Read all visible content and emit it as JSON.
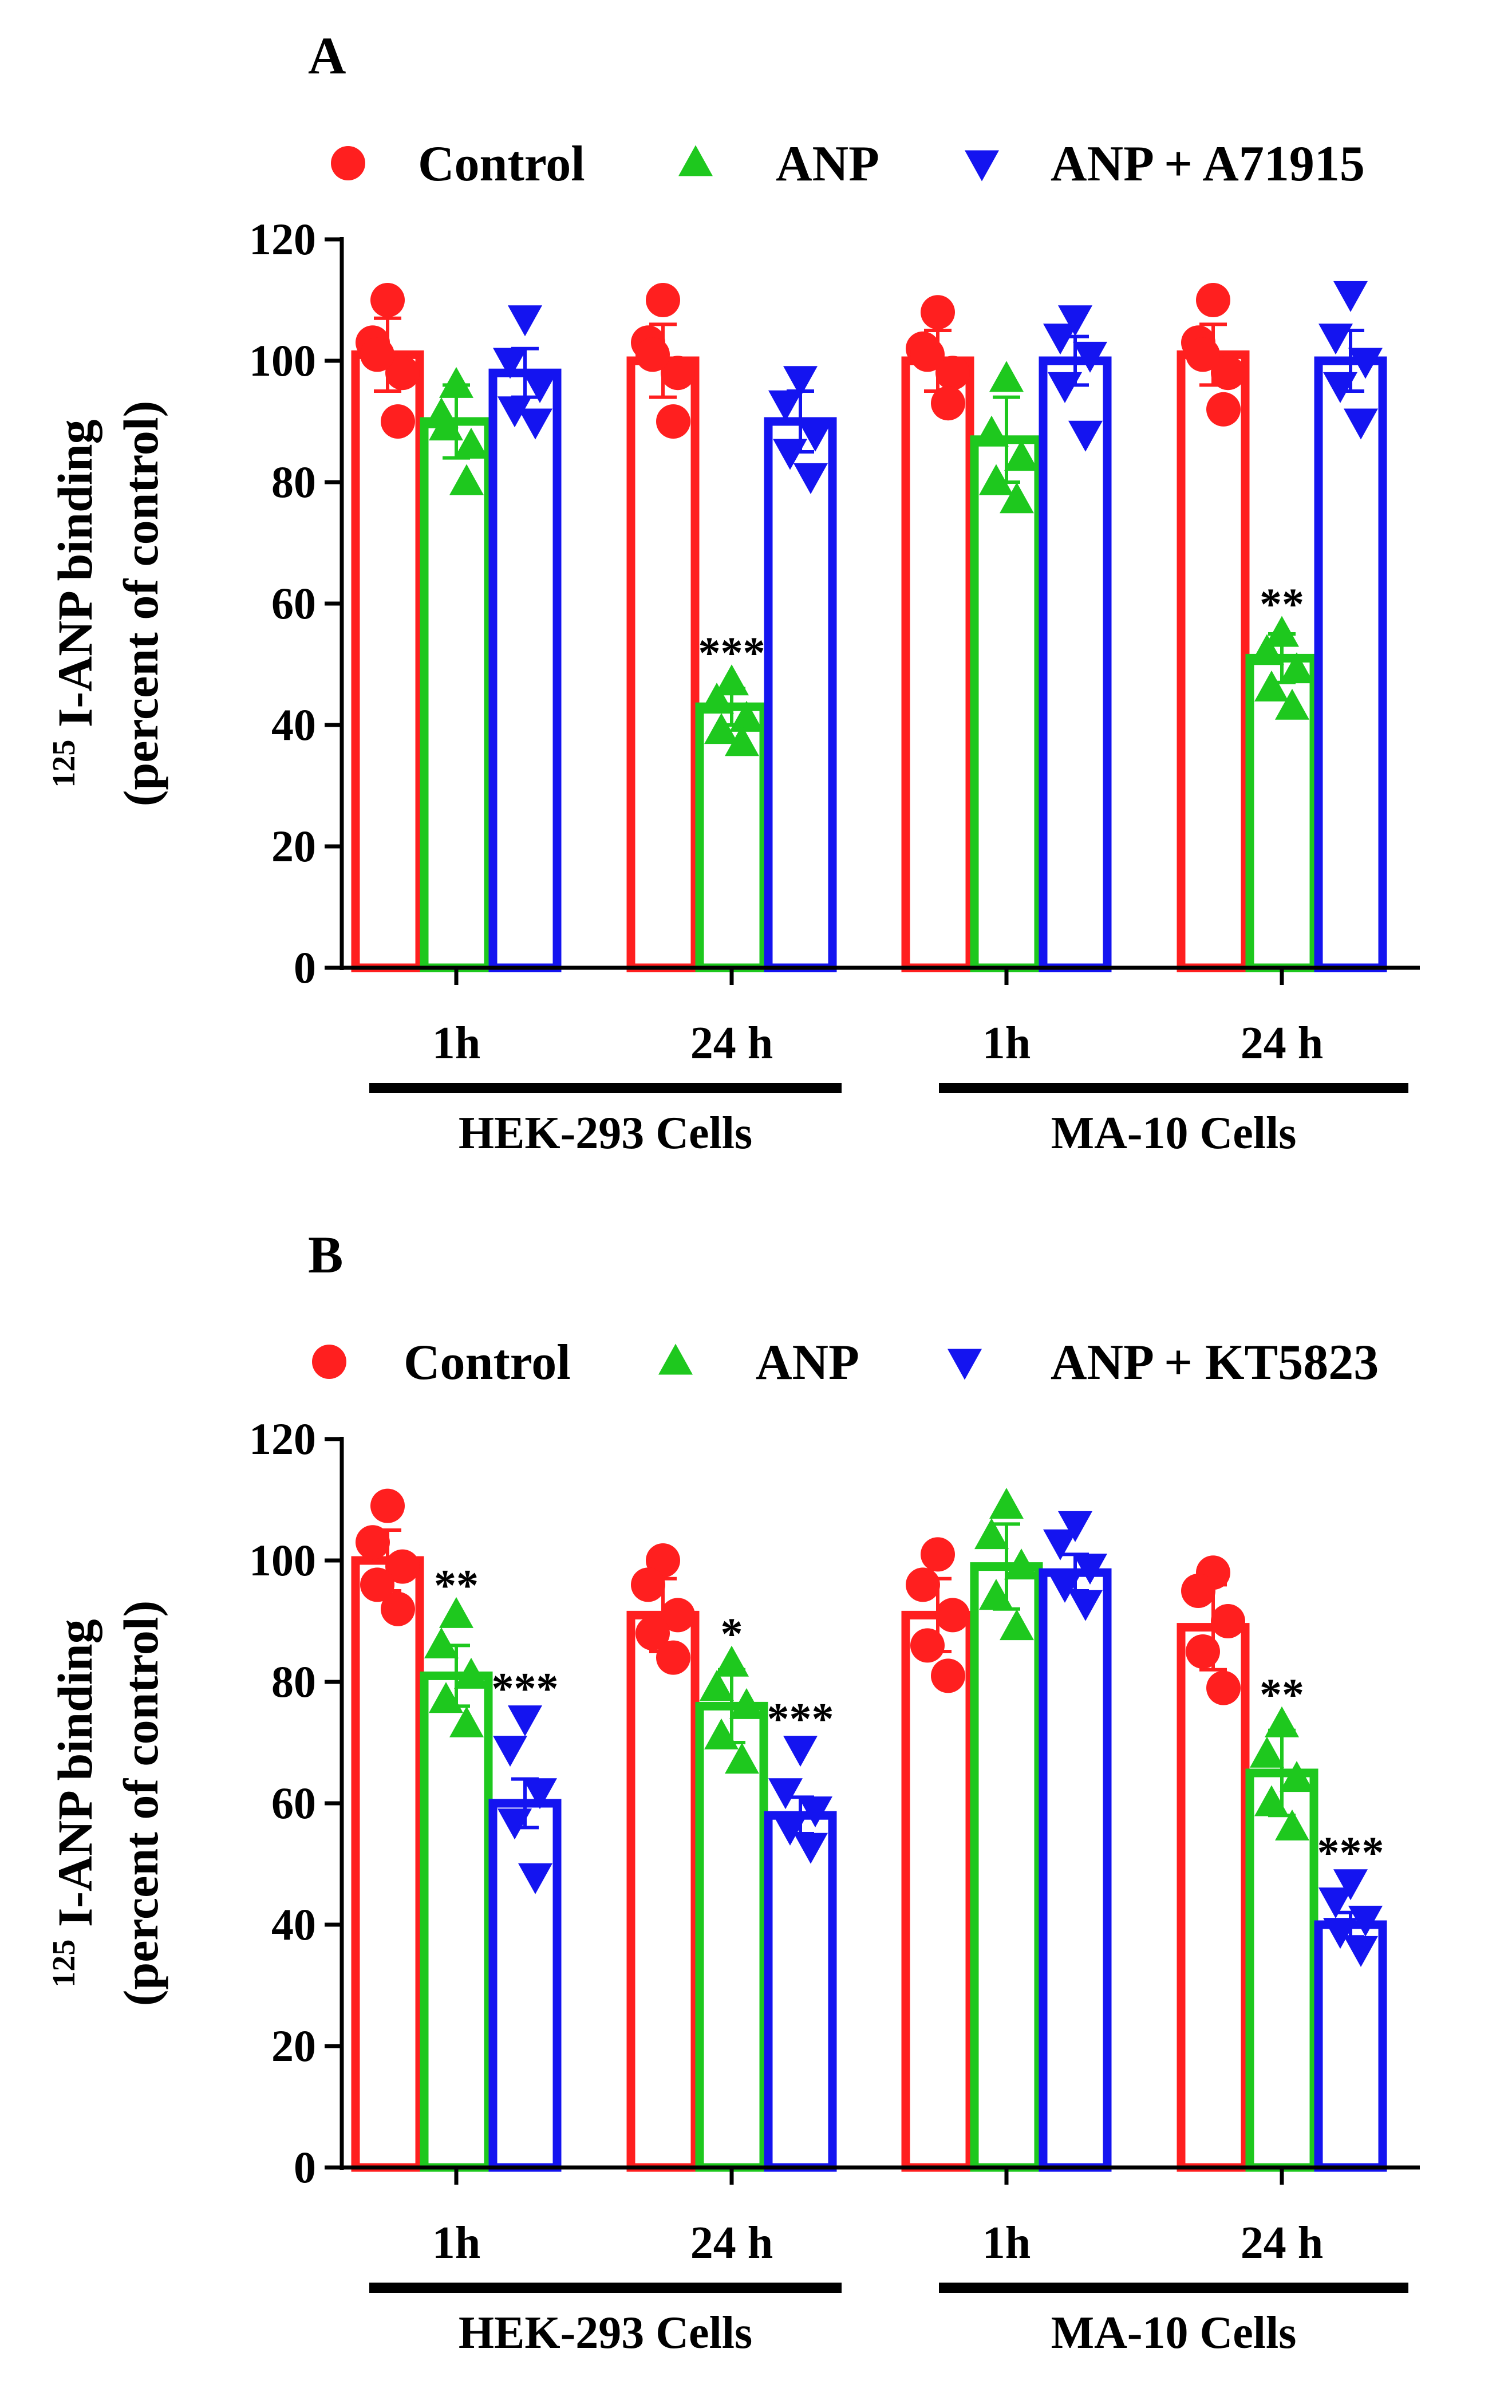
{
  "colors": {
    "control": "#ff1f1f",
    "anp": "#1ec81e",
    "inhibitor": "#1414f0",
    "axis": "#000000"
  },
  "chart_data": [
    {
      "panel": "A",
      "type": "bar",
      "ylabel_sup": "125",
      "ylabel_line1": " I-ANP binding",
      "ylabel_line2": "(percent of control)",
      "ylim": [
        0,
        120
      ],
      "yticks": [
        "0",
        "20",
        "40",
        "60",
        "80",
        "100",
        "120"
      ],
      "categories": [
        "1h",
        "24 h",
        "1h",
        "24 h"
      ],
      "groups": [
        "HEK-293 Cells",
        "MA-10 Cells"
      ],
      "legend": [
        "Control",
        "ANP",
        "ANP + A71915"
      ],
      "series": [
        {
          "name": "Control",
          "marker": "circle",
          "values": [
            101,
            100,
            100,
            101
          ],
          "err": [
            6,
            6,
            5,
            5
          ],
          "points": [
            [
              110,
              103,
              98,
              101,
              90
            ],
            [
              110,
              103,
              98,
              101,
              90
            ],
            [
              108,
              102,
              98,
              101,
              93
            ],
            [
              110,
              103,
              98,
              101,
              92
            ]
          ]
        },
        {
          "name": "ANP",
          "marker": "triangle-up",
          "values": [
            90,
            43,
            87,
            51
          ],
          "err": [
            6,
            3,
            7,
            4
          ],
          "points": [
            [
              96,
              91,
              86,
              89,
              80
            ],
            [
              47,
              44,
              41,
              39,
              37
            ],
            [
              97,
              88,
              84,
              80,
              77
            ],
            [
              55,
              52,
              49,
              46,
              43
            ]
          ]
        },
        {
          "name": "ANP + A71915",
          "marker": "triangle-down",
          "values": [
            98,
            90,
            100,
            100
          ],
          "err": [
            4,
            5,
            4,
            5
          ],
          "points": [
            [
              107,
              100,
              96,
              92,
              90
            ],
            [
              97,
              93,
              88,
              85,
              81
            ],
            [
              107,
              104,
              101,
              96,
              88
            ],
            [
              111,
              104,
              100,
              96,
              90
            ]
          ]
        }
      ],
      "annotations": [
        {
          "category": 1,
          "series": 1,
          "text": "***"
        },
        {
          "category": 3,
          "series": 1,
          "text": "**"
        }
      ]
    },
    {
      "panel": "B",
      "type": "bar",
      "ylabel_sup": "125",
      "ylabel_line1": " I-ANP binding",
      "ylabel_line2": "(percent of control)",
      "ylim": [
        0,
        120
      ],
      "yticks": [
        "0",
        "20",
        "40",
        "60",
        "80",
        "100",
        "120"
      ],
      "categories": [
        "1h",
        "24 h",
        "1h",
        "24 h"
      ],
      "groups": [
        "HEK-293 Cells",
        "MA-10 Cells"
      ],
      "legend": [
        "Control",
        "ANP",
        "ANP + KT5823"
      ],
      "series": [
        {
          "name": "Control",
          "marker": "circle",
          "values": [
            100,
            91,
            91,
            89
          ],
          "err": [
            5,
            6,
            6,
            7
          ],
          "points": [
            [
              109,
              103,
              99,
              96,
              92
            ],
            [
              100,
              96,
              91,
              88,
              84
            ],
            [
              101,
              96,
              91,
              86,
              81
            ],
            [
              98,
              95,
              90,
              85,
              79
            ]
          ]
        },
        {
          "name": "ANP",
          "marker": "triangle-up",
          "values": [
            81,
            76,
            99,
            65
          ],
          "err": [
            5,
            6,
            7,
            7
          ],
          "points": [
            [
              91,
              86,
              81,
              77,
              73
            ],
            [
              83,
              79,
              76,
              71,
              67
            ],
            [
              109,
              104,
              99,
              94,
              89
            ],
            [
              73,
              68,
              64,
              60,
              56
            ]
          ]
        },
        {
          "name": "ANP + KT5823",
          "marker": "triangle-down",
          "values": [
            60,
            58,
            98,
            40
          ],
          "err": [
            4,
            3,
            3,
            2
          ],
          "points": [
            [
              74,
              69,
              62,
              57,
              48
            ],
            [
              69,
              62,
              59,
              56,
              53
            ],
            [
              106,
              103,
              99,
              96,
              93
            ],
            [
              47,
              44,
              41,
              39,
              36
            ]
          ]
        }
      ],
      "annotations": [
        {
          "category": 0,
          "series": 1,
          "text": "**"
        },
        {
          "category": 0,
          "series": 2,
          "text": "***"
        },
        {
          "category": 1,
          "series": 1,
          "text": "*"
        },
        {
          "category": 1,
          "series": 2,
          "text": "***"
        },
        {
          "category": 3,
          "series": 1,
          "text": "**"
        },
        {
          "category": 3,
          "series": 2,
          "text": "***"
        }
      ]
    }
  ]
}
